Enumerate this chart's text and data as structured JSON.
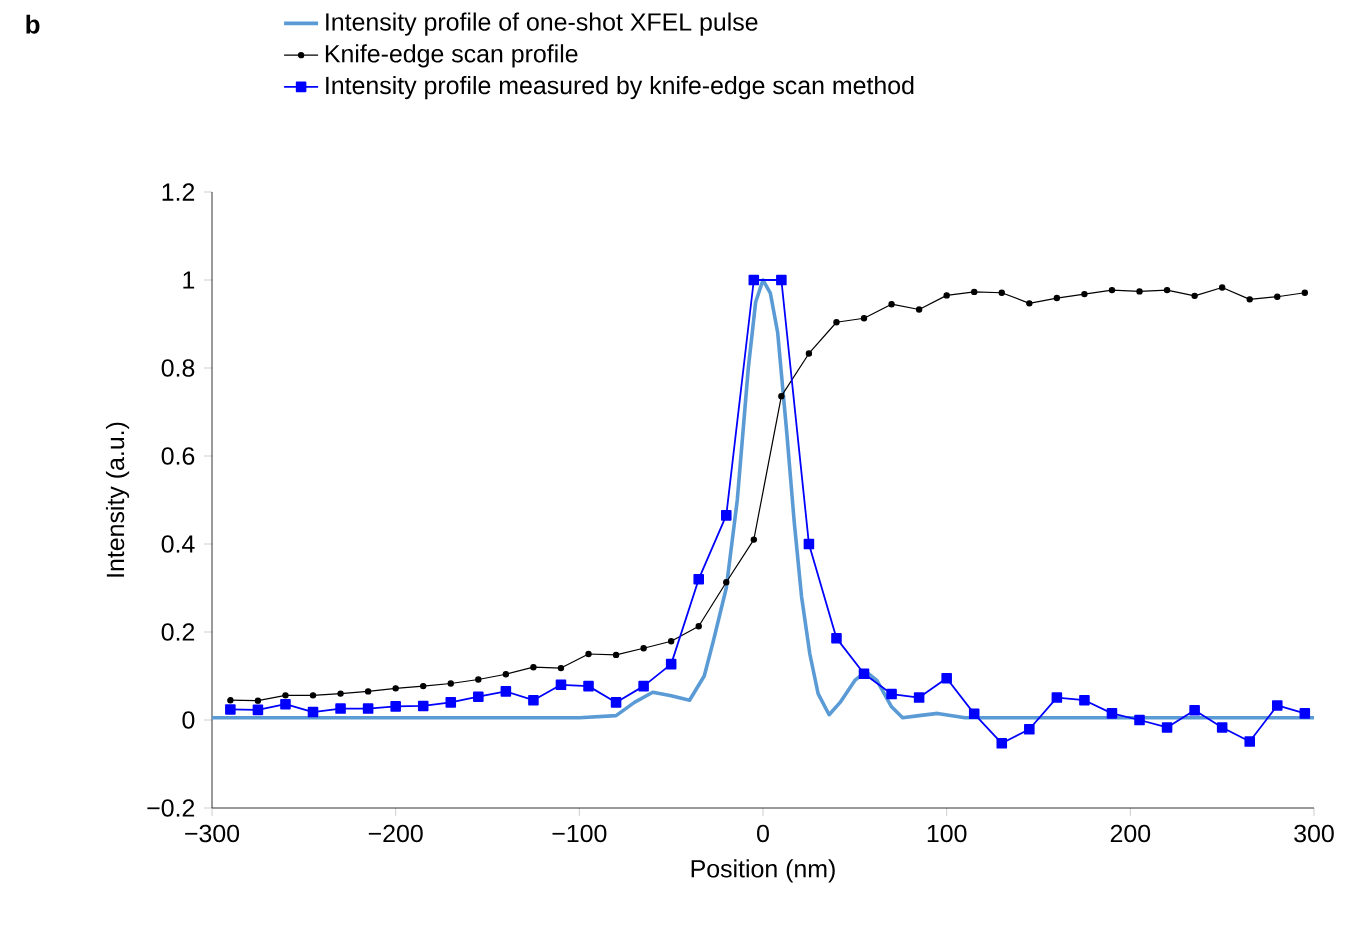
{
  "chart_data": {
    "type": "line",
    "xlabel": "Position (nm)",
    "ylabel": "Intensity (a.u.)",
    "annotations": [
      "b"
    ],
    "xlim": [
      -300,
      300
    ],
    "ylim": [
      -0.2,
      1.2
    ],
    "xticks": [
      {
        "value": -300,
        "label": "−300"
      },
      {
        "value": -200,
        "label": "−200"
      },
      {
        "value": -100,
        "label": "−100"
      },
      0,
      100,
      200,
      300
    ],
    "yticks": [
      {
        "value": -0.2,
        "label": "−0.2"
      },
      0,
      0.2,
      0.4,
      0.6,
      0.8,
      1,
      1.2
    ],
    "legend": "top",
    "grid": false,
    "series": [
      {
        "name": "Intensity profile of one-shot XFEL pulse",
        "color": "#5b9bd5",
        "marker": "none",
        "x": [
          -300,
          -200,
          -150,
          -100,
          -80,
          -70,
          -60,
          -50,
          -40,
          -32,
          -27,
          -20,
          -14,
          -8,
          -4,
          0,
          4,
          8,
          13,
          17,
          21,
          25.5,
          30,
          36,
          42,
          50,
          56,
          62,
          70,
          76,
          85,
          95,
          110,
          130,
          200,
          300
        ],
        "values": [
          0.005,
          0.005,
          0.005,
          0.005,
          0.01,
          0.04,
          0.063,
          0.055,
          0.045,
          0.1,
          0.18,
          0.3,
          0.5,
          0.8,
          0.95,
          1.0,
          0.97,
          0.88,
          0.65,
          0.45,
          0.28,
          0.15,
          0.06,
          0.012,
          0.04,
          0.09,
          0.11,
          0.09,
          0.03,
          0.005,
          0.01,
          0.015,
          0.005,
          0.005,
          0.005,
          0.005
        ]
      },
      {
        "name": "Knife-edge scan profile",
        "color": "#000000",
        "marker": "circle",
        "x": [
          -290,
          -275,
          -260,
          -245,
          -230,
          -215,
          -200,
          -185,
          -170,
          -155,
          -140,
          -125,
          -110,
          -95,
          -80,
          -65,
          -50,
          -35,
          -20,
          -5,
          10,
          25,
          40,
          55,
          70,
          85,
          100,
          115,
          130,
          145,
          160,
          175,
          190,
          205,
          220,
          235,
          250,
          265,
          280,
          295
        ],
        "values": [
          0.045,
          0.044,
          0.056,
          0.056,
          0.06,
          0.065,
          0.072,
          0.077,
          0.083,
          0.092,
          0.104,
          0.12,
          0.118,
          0.15,
          0.148,
          0.163,
          0.179,
          0.213,
          0.313,
          0.41,
          0.736,
          0.833,
          0.904,
          0.913,
          0.945,
          0.933,
          0.965,
          0.973,
          0.971,
          0.947,
          0.959,
          0.968,
          0.977,
          0.974,
          0.977,
          0.964,
          0.983,
          0.956,
          0.962,
          0.971
        ]
      },
      {
        "name": "Intensity profile measured by knife-edge scan method",
        "color": "#0000ff",
        "marker": "square",
        "x": [
          -290,
          -275,
          -260,
          -245,
          -230,
          -215,
          -200,
          -185,
          -170,
          -155,
          -140,
          -125,
          -110,
          -95,
          -80,
          -65,
          -50,
          -35,
          -20,
          -5,
          10,
          25,
          40,
          55,
          70,
          85,
          100,
          115,
          130,
          145,
          160,
          175,
          190,
          205,
          220,
          235,
          250,
          265,
          280,
          295
        ],
        "values": [
          0.024,
          0.023,
          0.036,
          0.018,
          0.026,
          0.026,
          0.031,
          0.032,
          0.04,
          0.053,
          0.065,
          0.045,
          0.08,
          0.077,
          0.04,
          0.077,
          0.127,
          0.32,
          0.465,
          1.0,
          1.0,
          0.4,
          0.186,
          0.105,
          0.059,
          0.051,
          0.095,
          0.014,
          -0.053,
          -0.021,
          0.051,
          0.045,
          0.015,
          0.0,
          -0.017,
          0.022,
          -0.017,
          -0.049,
          0.033,
          0.015
        ]
      }
    ]
  }
}
